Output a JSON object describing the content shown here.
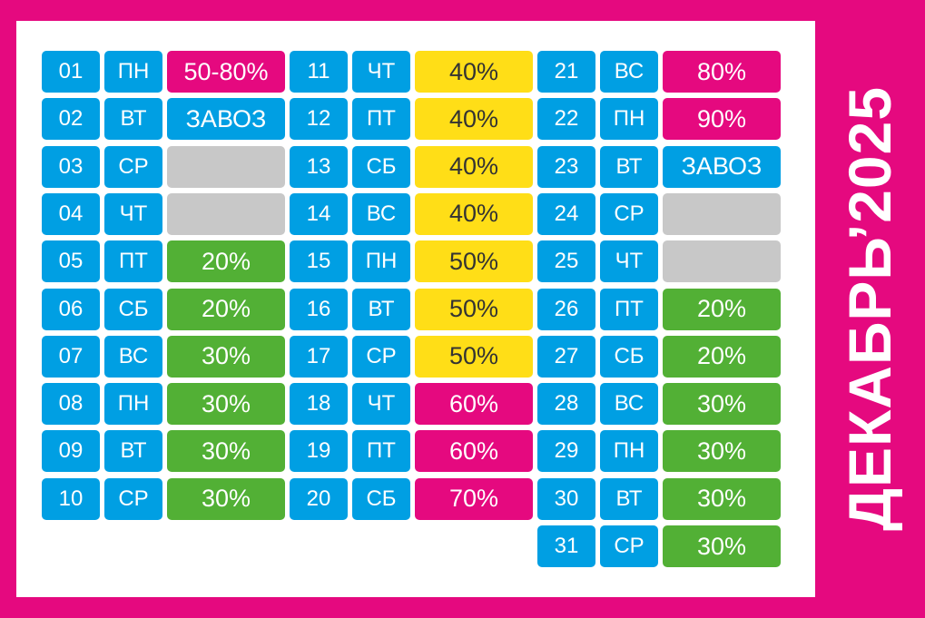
{
  "title": "ДЕКАБРЬ’2025",
  "colors": {
    "background": "#e5097f",
    "panel": "#ffffff",
    "blue": "#009fe3",
    "gray": "#c8c8c8",
    "green": "#52b035",
    "yellow": "#ffde17",
    "pink": "#e5097f"
  },
  "columns": [
    {
      "days": [
        {
          "day": "01",
          "weekday": "ПН",
          "label": "50-80%",
          "color": "pink"
        },
        {
          "day": "02",
          "weekday": "ВТ",
          "label": "ЗАВОЗ",
          "color": "blue"
        },
        {
          "day": "03",
          "weekday": "СР",
          "label": "",
          "color": "gray"
        },
        {
          "day": "04",
          "weekday": "ЧТ",
          "label": "",
          "color": "gray"
        },
        {
          "day": "05",
          "weekday": "ПТ",
          "label": "20%",
          "color": "green"
        },
        {
          "day": "06",
          "weekday": "СБ",
          "label": "20%",
          "color": "green"
        },
        {
          "day": "07",
          "weekday": "ВС",
          "label": "30%",
          "color": "green"
        },
        {
          "day": "08",
          "weekday": "ПН",
          "label": "30%",
          "color": "green"
        },
        {
          "day": "09",
          "weekday": "ВТ",
          "label": "30%",
          "color": "green"
        },
        {
          "day": "10",
          "weekday": "СР",
          "label": "30%",
          "color": "green"
        }
      ]
    },
    {
      "days": [
        {
          "day": "11",
          "weekday": "ЧТ",
          "label": "40%",
          "color": "yellow"
        },
        {
          "day": "12",
          "weekday": "ПТ",
          "label": "40%",
          "color": "yellow"
        },
        {
          "day": "13",
          "weekday": "СБ",
          "label": "40%",
          "color": "yellow"
        },
        {
          "day": "14",
          "weekday": "ВС",
          "label": "40%",
          "color": "yellow"
        },
        {
          "day": "15",
          "weekday": "ПН",
          "label": "50%",
          "color": "yellow"
        },
        {
          "day": "16",
          "weekday": "ВТ",
          "label": "50%",
          "color": "yellow"
        },
        {
          "day": "17",
          "weekday": "СР",
          "label": "50%",
          "color": "yellow"
        },
        {
          "day": "18",
          "weekday": "ЧТ",
          "label": "60%",
          "color": "pink"
        },
        {
          "day": "19",
          "weekday": "ПТ",
          "label": "60%",
          "color": "pink"
        },
        {
          "day": "20",
          "weekday": "СБ",
          "label": "70%",
          "color": "pink"
        }
      ]
    },
    {
      "days": [
        {
          "day": "21",
          "weekday": "ВС",
          "label": "80%",
          "color": "pink"
        },
        {
          "day": "22",
          "weekday": "ПН",
          "label": "90%",
          "color": "pink"
        },
        {
          "day": "23",
          "weekday": "ВТ",
          "label": "ЗАВОЗ",
          "color": "blue"
        },
        {
          "day": "24",
          "weekday": "СР",
          "label": "",
          "color": "gray"
        },
        {
          "day": "25",
          "weekday": "ЧТ",
          "label": "",
          "color": "gray"
        },
        {
          "day": "26",
          "weekday": "ПТ",
          "label": "20%",
          "color": "green"
        },
        {
          "day": "27",
          "weekday": "СБ",
          "label": "20%",
          "color": "green"
        },
        {
          "day": "28",
          "weekday": "ВС",
          "label": "30%",
          "color": "green"
        },
        {
          "day": "29",
          "weekday": "ПН",
          "label": "30%",
          "color": "green"
        },
        {
          "day": "30",
          "weekday": "ВТ",
          "label": "30%",
          "color": "green"
        },
        {
          "day": "31",
          "weekday": "СР",
          "label": "30%",
          "color": "green"
        }
      ]
    }
  ]
}
